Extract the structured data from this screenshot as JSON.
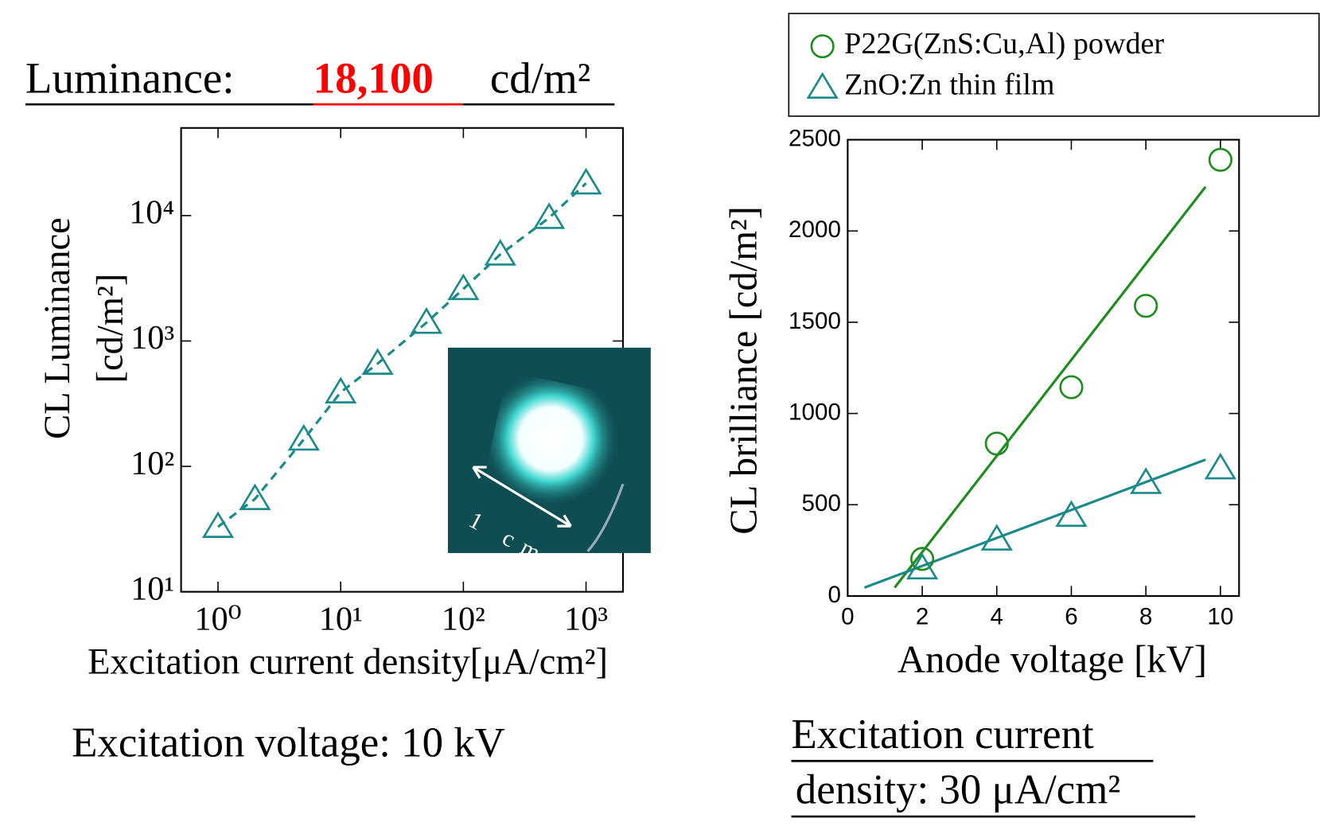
{
  "heading": {
    "label": "Luminance:",
    "value": "18,100",
    "unit": "cd/m²"
  },
  "inset_label": "1 cm",
  "excitation_voltage": "Excitation voltage: 10 kV",
  "excitation_current_density": [
    "Excitation current",
    "density: 30 μA/cm²"
  ],
  "chart_data": [
    {
      "type": "line",
      "x_label": "Excitation current density[μA/cm²]",
      "y_label": [
        "CL Luminance",
        "[cd/m²]"
      ],
      "log_x": true,
      "log_y": true,
      "xlim": [
        0.5,
        2000
      ],
      "ylim": [
        10,
        50000
      ],
      "xticks": [
        {
          "value": 1,
          "label": "10⁰"
        },
        {
          "value": 10,
          "label": "10¹"
        },
        {
          "value": 100,
          "label": "10²"
        },
        {
          "value": 1000,
          "label": "10³"
        }
      ],
      "yticks": [
        {
          "value": 10,
          "label": "10¹"
        },
        {
          "value": 100,
          "label": "10²"
        },
        {
          "value": 1000,
          "label": "10³"
        },
        {
          "value": 10000,
          "label": "10⁴"
        }
      ],
      "x": [
        1,
        2,
        5,
        10,
        20,
        50,
        100,
        200,
        500,
        1000
      ],
      "values": [
        33,
        55,
        164,
        390,
        660,
        1400,
        2600,
        4900,
        9600,
        18100
      ],
      "color": "#1a8a8a",
      "marker": "triangle",
      "line_style": "dashed"
    },
    {
      "type": "scatter",
      "x_label": "Anode voltage [kV]",
      "y_label": [
        "CL brilliance [cd/m²]"
      ],
      "log_x": false,
      "log_y": false,
      "xlim": [
        0,
        10.5
      ],
      "ylim": [
        0,
        2500
      ],
      "xticks": [
        0,
        2,
        4,
        6,
        8,
        10
      ],
      "yticks": [
        0,
        500,
        1000,
        1500,
        2000,
        2500
      ],
      "x": [
        2,
        4,
        6,
        8,
        10
      ],
      "series": [
        {
          "name": "P22G(ZnS:Cu,Al) powder",
          "color": "#1e8c1e",
          "marker": "circle",
          "values": [
            203,
            835,
            1144,
            1590,
            2390
          ]
        },
        {
          "name": "ZnO:Zn thin film",
          "color": "#1a8a8a",
          "marker": "triangle",
          "values": [
            152,
            310,
            440,
            620,
            700
          ]
        }
      ],
      "fits": [
        {
          "color": "#1e8c1e",
          "x": [
            1.26,
            9.6
          ],
          "values": [
            46,
            2242
          ]
        },
        {
          "color": "#1a8a8a",
          "x": [
            0.45,
            9.6
          ],
          "values": [
            46,
            747
          ]
        }
      ]
    }
  ]
}
